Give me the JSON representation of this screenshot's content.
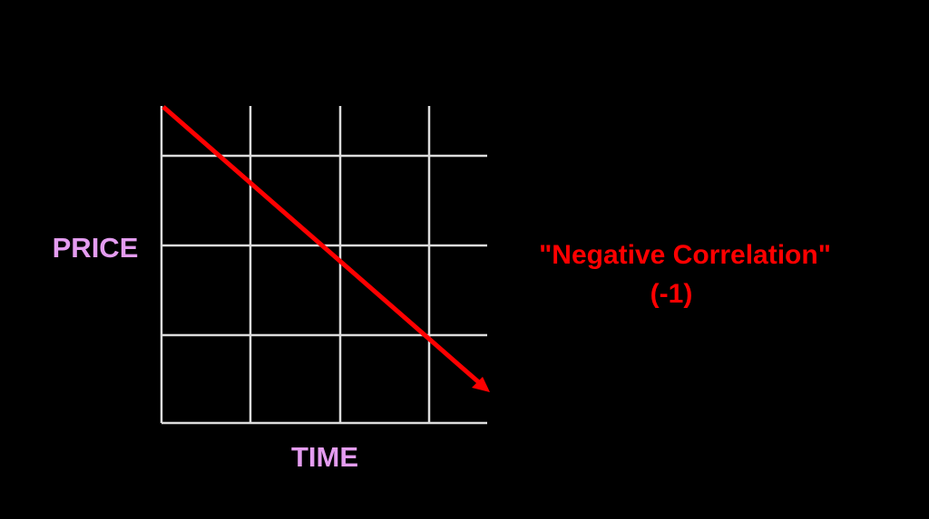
{
  "diagram": {
    "y_label": "PRICE",
    "x_label": "TIME",
    "annotation": {
      "title": "\"Negative Correlation\"",
      "value": "(-1)"
    }
  }
}
